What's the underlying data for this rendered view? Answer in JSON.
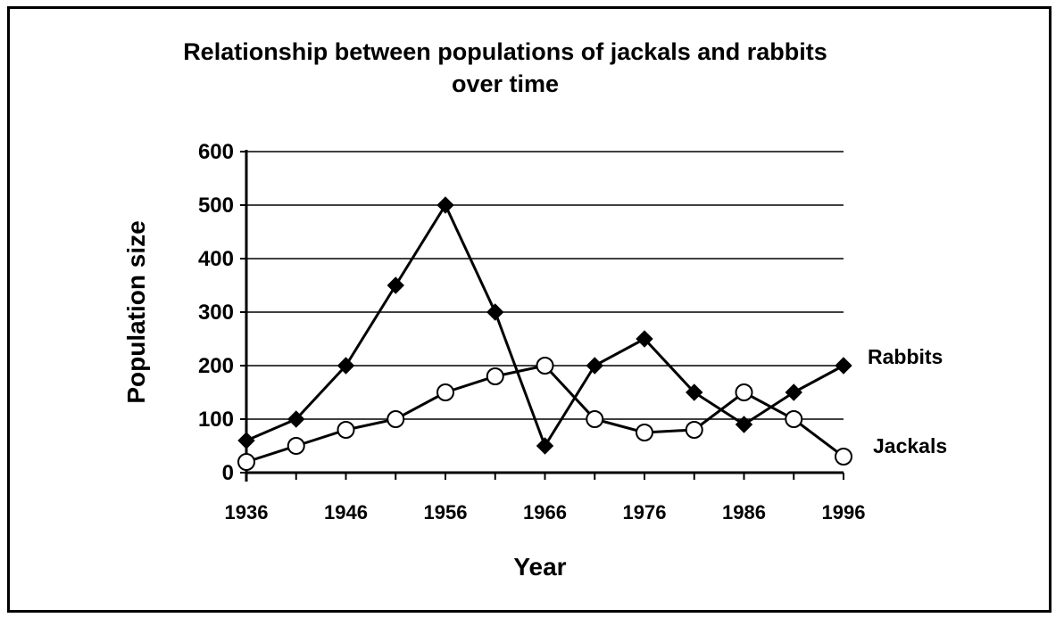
{
  "chart_data": {
    "type": "line",
    "title": "Relationship between populations of jackals and rabbits",
    "subtitle": "over time",
    "xlabel": "Year",
    "ylabel": "Population size",
    "x": [
      1936,
      1941,
      1946,
      1951,
      1956,
      1961,
      1966,
      1971,
      1976,
      1981,
      1986,
      1991,
      1996
    ],
    "x_ticks": [
      "1936",
      "1946",
      "1956",
      "1966",
      "1976",
      "1986",
      "1996"
    ],
    "x_tick_values": [
      1936,
      1946,
      1956,
      1966,
      1976,
      1986,
      1996
    ],
    "y_ticks": [
      "0",
      "100",
      "200",
      "300",
      "400",
      "500",
      "600"
    ],
    "y_tick_values": [
      0,
      100,
      200,
      300,
      400,
      500,
      600
    ],
    "xlim": [
      1936,
      1996
    ],
    "ylim": [
      0,
      600
    ],
    "grid": "horizontal",
    "legend": "labels at line ends (right)",
    "series": [
      {
        "name": "Rabbits",
        "marker": "filled-diamond",
        "color": "#000000",
        "values": [
          60,
          100,
          200,
          350,
          500,
          300,
          50,
          200,
          250,
          150,
          90,
          150,
          200
        ]
      },
      {
        "name": "Jackals",
        "marker": "open-circle",
        "color": "#000000",
        "values": [
          20,
          50,
          80,
          100,
          150,
          180,
          200,
          100,
          75,
          80,
          150,
          100,
          30
        ]
      }
    ]
  }
}
